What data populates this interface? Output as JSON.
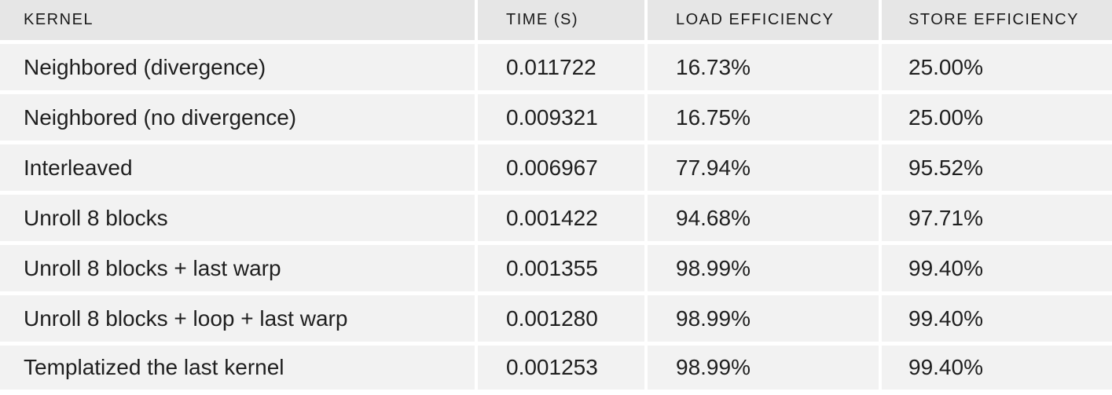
{
  "table": {
    "headers": {
      "kernel": "KERNEL",
      "time": "TIME (S)",
      "load": "LOAD EFFICIENCY",
      "store": "STORE EFFICIENCY"
    },
    "rows": [
      {
        "kernel": "Neighbored (divergence)",
        "time": "0.011722",
        "load": "16.73%",
        "store": "25.00%"
      },
      {
        "kernel": "Neighbored (no divergence)",
        "time": "0.009321",
        "load": "16.75%",
        "store": "25.00%"
      },
      {
        "kernel": "Interleaved",
        "time": "0.006967",
        "load": "77.94%",
        "store": "95.52%"
      },
      {
        "kernel": "Unroll 8 blocks",
        "time": "0.001422",
        "load": "94.68%",
        "store": "97.71%"
      },
      {
        "kernel": "Unroll 8 blocks + last warp",
        "time": "0.001355",
        "load": "98.99%",
        "store": "99.40%"
      },
      {
        "kernel": "Unroll 8 blocks + loop + last warp",
        "time": "0.001280",
        "load": "98.99%",
        "store": "99.40%"
      },
      {
        "kernel": "Templatized the last kernel",
        "time": "0.001253",
        "load": "98.99%",
        "store": "99.40%"
      }
    ]
  }
}
